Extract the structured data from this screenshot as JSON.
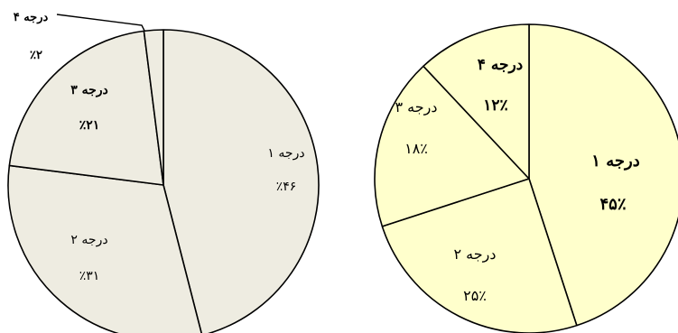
{
  "chart_data": [
    {
      "type": "pie",
      "title": "",
      "colors": {
        "fill": "#EEECE1",
        "stroke": "#000000"
      },
      "slices": [
        {
          "label": "درجه ۱",
          "value_label": "٪۴۶",
          "value": 46
        },
        {
          "label": "درجه ۲",
          "value_label": "٪۳۱",
          "value": 31
        },
        {
          "label": "درجه ۳",
          "value_label": "٪۲۱",
          "value": 21
        },
        {
          "label": "درجه ۴",
          "value_label": "٪۲",
          "value": 2
        }
      ]
    },
    {
      "type": "pie",
      "title": "",
      "colors": {
        "fill": "#FFFFCC",
        "stroke": "#000000"
      },
      "slices": [
        {
          "label": "درجه ۱",
          "value_label": "۴۵٪",
          "value": 45
        },
        {
          "label": "درجه ۲",
          "value_label": "۲۵٪",
          "value": 25
        },
        {
          "label": "درجه ۳",
          "value_label": "۱۸٪",
          "value": 18
        },
        {
          "label": "درجه ۴",
          "value_label": "۱۲٪",
          "value": 12
        }
      ]
    }
  ]
}
